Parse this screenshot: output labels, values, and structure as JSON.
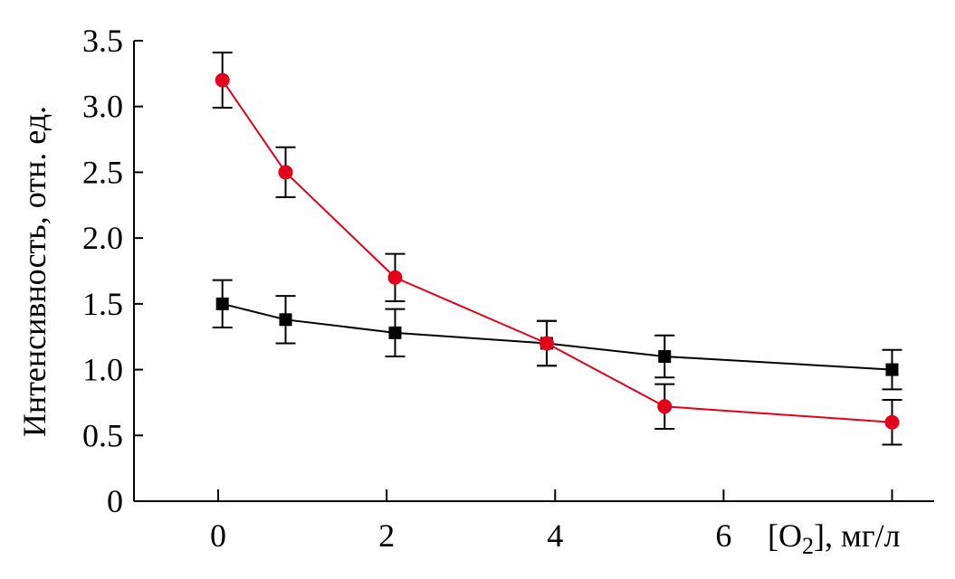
{
  "chart_data": {
    "type": "line",
    "title": "",
    "xlabel": "[O2], мг/л",
    "xlabel_main": "[O",
    "xlabel_sub": "2",
    "xlabel_rest": "], мг/л",
    "ylabel": "Интенсивность, отн. ед.",
    "xlim": [
      -1,
      8.5
    ],
    "ylim": [
      0,
      3.5
    ],
    "xticks": [
      0,
      2,
      4,
      6,
      8
    ],
    "xtick_labels": [
      "0",
      "2",
      "4",
      "6",
      ""
    ],
    "yticks": [
      0,
      0.5,
      1.0,
      1.5,
      2.0,
      2.5,
      3.0,
      3.5
    ],
    "ytick_labels": [
      "0",
      "0.5",
      "1.0",
      "1.5",
      "2.0",
      "2.5",
      "3.0",
      "3.5"
    ],
    "grid": false,
    "series": [
      {
        "marker": "square",
        "color": "#000000",
        "x": [
          0.05,
          0.8,
          2.1,
          3.9,
          5.3,
          8.0
        ],
        "y": [
          1.5,
          1.38,
          1.28,
          1.2,
          1.1,
          1.0
        ],
        "err": [
          0.18,
          0.18,
          0.18,
          0.17,
          0.16,
          0.15
        ]
      },
      {
        "marker": "circle",
        "color": "#e3001b",
        "x": [
          0.05,
          0.8,
          2.1,
          3.9,
          5.3,
          8.0
        ],
        "y": [
          3.2,
          2.5,
          1.7,
          1.2,
          0.72,
          0.6
        ],
        "err": [
          0.21,
          0.19,
          0.18,
          0.17,
          0.17,
          0.17
        ]
      }
    ]
  }
}
